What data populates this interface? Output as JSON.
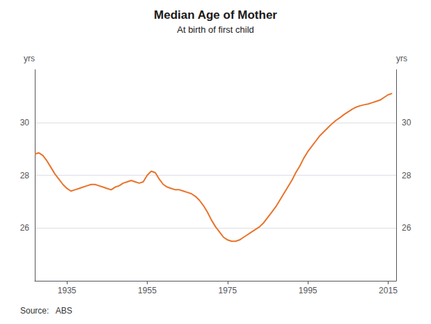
{
  "chart_data": {
    "type": "line",
    "title": "Median Age of Mother",
    "subtitle": "At birth of first child",
    "annotation": "Source:   ABS",
    "y_label": "yrs",
    "y2_label": "yrs",
    "color": "#E8732A",
    "xlim": [
      1927,
      2017
    ],
    "xticks": [
      1935,
      1955,
      1975,
      1995,
      2015
    ],
    "ylim": [
      24,
      32
    ],
    "yticks": [
      26,
      28,
      30
    ],
    "y2lim": [
      24,
      32
    ],
    "y2ticks": [
      26,
      28,
      30
    ],
    "grid": true,
    "x": [
      1927,
      1928,
      1929,
      1930,
      1931,
      1932,
      1933,
      1934,
      1935,
      1936,
      1937,
      1938,
      1939,
      1940,
      1941,
      1942,
      1943,
      1944,
      1945,
      1946,
      1947,
      1948,
      1949,
      1950,
      1951,
      1952,
      1953,
      1954,
      1955,
      1956,
      1957,
      1958,
      1959,
      1960,
      1961,
      1962,
      1963,
      1964,
      1965,
      1966,
      1967,
      1968,
      1969,
      1970,
      1971,
      1972,
      1973,
      1974,
      1975,
      1976,
      1977,
      1978,
      1979,
      1980,
      1981,
      1982,
      1983,
      1984,
      1985,
      1986,
      1987,
      1988,
      1989,
      1990,
      1991,
      1992,
      1993,
      1994,
      1995,
      1996,
      1997,
      1998,
      1999,
      2000,
      2001,
      2002,
      2003,
      2004,
      2005,
      2006,
      2007,
      2008,
      2009,
      2010,
      2011,
      2012,
      2013,
      2014,
      2015,
      2016
    ],
    "values": [
      28.8,
      28.85,
      28.75,
      28.55,
      28.3,
      28.05,
      27.85,
      27.65,
      27.5,
      27.4,
      27.45,
      27.5,
      27.55,
      27.6,
      27.65,
      27.65,
      27.6,
      27.55,
      27.5,
      27.45,
      27.55,
      27.6,
      27.7,
      27.75,
      27.8,
      27.75,
      27.7,
      27.75,
      28.0,
      28.15,
      28.1,
      27.85,
      27.65,
      27.55,
      27.5,
      27.45,
      27.45,
      27.4,
      27.35,
      27.3,
      27.2,
      27.05,
      26.85,
      26.6,
      26.3,
      26.05,
      25.85,
      25.65,
      25.55,
      25.5,
      25.5,
      25.55,
      25.65,
      25.75,
      25.85,
      25.95,
      26.05,
      26.2,
      26.4,
      26.6,
      26.8,
      27.05,
      27.3,
      27.55,
      27.8,
      28.1,
      28.35,
      28.65,
      28.9,
      29.1,
      29.3,
      29.5,
      29.65,
      29.8,
      29.95,
      30.08,
      30.18,
      30.3,
      30.4,
      30.5,
      30.58,
      30.63,
      30.67,
      30.7,
      30.75,
      30.8,
      30.85,
      30.95,
      31.05,
      31.1
    ]
  }
}
